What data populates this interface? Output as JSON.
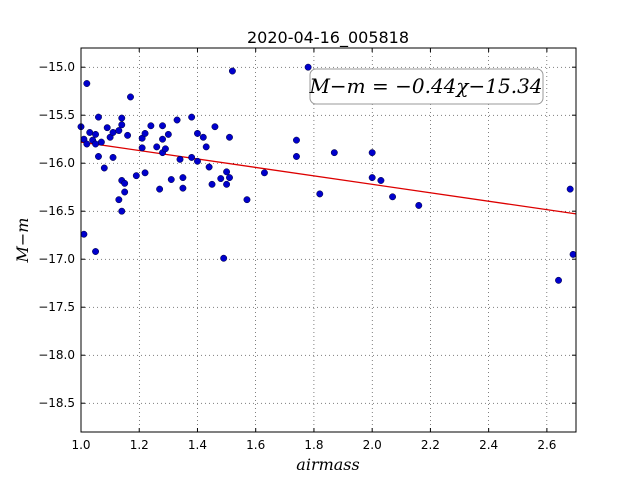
{
  "chart_data": {
    "type": "scatter",
    "title": "2020-04-16_005818",
    "xlabel": "airmass",
    "ylabel": "M−m",
    "xlim": [
      1.0,
      2.7
    ],
    "ylim": [
      -18.8,
      -14.8
    ],
    "y_inverted": true,
    "grid": true,
    "xticks": [
      1.0,
      1.2,
      1.4,
      1.6,
      1.8,
      2.0,
      2.2,
      2.4,
      2.6
    ],
    "xtick_labels": [
      "1.0",
      "1.2",
      "1.4",
      "1.6",
      "1.8",
      "2.0",
      "2.2",
      "2.4",
      "2.6"
    ],
    "yticks": [
      -15.0,
      -15.5,
      -16.0,
      -16.5,
      -17.0,
      -17.5,
      -18.0,
      -18.5
    ],
    "ytick_labels": [
      "−15.0",
      "−15.5",
      "−16.0",
      "−16.5",
      "−17.0",
      "−17.5",
      "−18.0",
      "−18.5"
    ],
    "point_color": "#0000cc",
    "fit_color": "#dd0000",
    "fit": {
      "slope": -0.44,
      "intercept": -15.34,
      "label": "M−m = −0.44χ−15.34"
    },
    "points": [
      [
        1.0,
        -15.62
      ],
      [
        1.01,
        -15.75
      ],
      [
        1.01,
        -16.74
      ],
      [
        1.02,
        -15.17
      ],
      [
        1.02,
        -15.8
      ],
      [
        1.03,
        -15.68
      ],
      [
        1.04,
        -15.76
      ],
      [
        1.05,
        -15.7
      ],
      [
        1.05,
        -16.92
      ],
      [
        1.05,
        -15.8
      ],
      [
        1.06,
        -15.52
      ],
      [
        1.06,
        -15.93
      ],
      [
        1.07,
        -15.78
      ],
      [
        1.08,
        -16.05
      ],
      [
        1.09,
        -15.63
      ],
      [
        1.1,
        -15.73
      ],
      [
        1.11,
        -15.68
      ],
      [
        1.11,
        -15.94
      ],
      [
        1.13,
        -16.38
      ],
      [
        1.13,
        -15.66
      ],
      [
        1.14,
        -15.53
      ],
      [
        1.14,
        -15.6
      ],
      [
        1.14,
        -16.18
      ],
      [
        1.14,
        -16.5
      ],
      [
        1.15,
        -16.3
      ],
      [
        1.15,
        -16.21
      ],
      [
        1.16,
        -15.71
      ],
      [
        1.17,
        -15.31
      ],
      [
        1.19,
        -16.13
      ],
      [
        1.21,
        -15.74
      ],
      [
        1.21,
        -15.84
      ],
      [
        1.22,
        -16.1
      ],
      [
        1.22,
        -15.69
      ],
      [
        1.24,
        -15.61
      ],
      [
        1.26,
        -15.83
      ],
      [
        1.27,
        -16.27
      ],
      [
        1.28,
        -15.89
      ],
      [
        1.28,
        -15.61
      ],
      [
        1.28,
        -15.75
      ],
      [
        1.29,
        -15.85
      ],
      [
        1.3,
        -15.7
      ],
      [
        1.31,
        -16.17
      ],
      [
        1.33,
        -15.55
      ],
      [
        1.34,
        -15.96
      ],
      [
        1.35,
        -16.26
      ],
      [
        1.35,
        -16.15
      ],
      [
        1.38,
        -15.52
      ],
      [
        1.38,
        -15.94
      ],
      [
        1.4,
        -15.69
      ],
      [
        1.4,
        -15.98
      ],
      [
        1.42,
        -15.73
      ],
      [
        1.43,
        -15.83
      ],
      [
        1.44,
        -16.04
      ],
      [
        1.45,
        -16.22
      ],
      [
        1.46,
        -15.62
      ],
      [
        1.48,
        -16.16
      ],
      [
        1.49,
        -16.99
      ],
      [
        1.5,
        -16.22
      ],
      [
        1.5,
        -16.09
      ],
      [
        1.51,
        -16.15
      ],
      [
        1.51,
        -15.73
      ],
      [
        1.52,
        -15.04
      ],
      [
        1.57,
        -16.38
      ],
      [
        1.63,
        -16.1
      ],
      [
        1.74,
        -15.76
      ],
      [
        1.74,
        -15.93
      ],
      [
        1.78,
        -15.0
      ],
      [
        1.82,
        -16.32
      ],
      [
        1.87,
        -15.89
      ],
      [
        2.0,
        -15.89
      ],
      [
        2.0,
        -16.15
      ],
      [
        2.03,
        -16.18
      ],
      [
        2.07,
        -16.35
      ],
      [
        2.16,
        -16.44
      ],
      [
        2.64,
        -17.22
      ],
      [
        2.68,
        -16.27
      ],
      [
        2.69,
        -16.95
      ]
    ]
  }
}
